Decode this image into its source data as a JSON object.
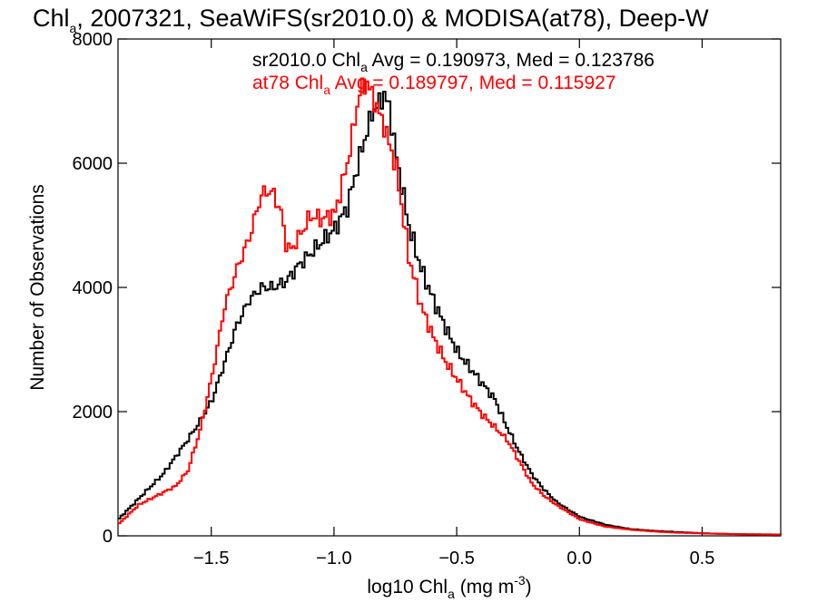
{
  "chart_data": {
    "type": "line",
    "title": {
      "pre": "Chl",
      "sub": "a",
      "post": ", 2007321, SeaWiFS(sr2010.0) & MODISA(at78), Deep-W"
    },
    "xlabel": {
      "pre": "log10 Chl",
      "sub": "a",
      "mid": " (mg m",
      "sup": "-3",
      "post": ")"
    },
    "ylabel": "Number of Observations",
    "xlim": [
      -1.88,
      0.82
    ],
    "ylim": [
      0,
      8000
    ],
    "xticks": [
      -1.5,
      -1.0,
      -0.5,
      0.0,
      0.5
    ],
    "xtick_labels": [
      "−1.5",
      "−1.0",
      "−0.5",
      "0.0",
      "0.5"
    ],
    "yticks": [
      0,
      2000,
      4000,
      6000,
      8000
    ],
    "ytick_labels": [
      "0",
      "2000",
      "4000",
      "6000",
      "8000"
    ],
    "grid": false,
    "legend_placement": "top-center",
    "series": [
      {
        "legend": {
          "pre": "sr2010.0 Chl",
          "sub": "a",
          "post": " Avg = 0.190973, Med = 0.123786"
        },
        "color": "#000000",
        "x": [
          -1.88,
          -1.8,
          -1.7,
          -1.6,
          -1.55,
          -1.5,
          -1.45,
          -1.4,
          -1.35,
          -1.3,
          -1.25,
          -1.2,
          -1.15,
          -1.1,
          -1.05,
          -1.0,
          -0.95,
          -0.9,
          -0.85,
          -0.8,
          -0.78,
          -0.75,
          -0.7,
          -0.65,
          -0.6,
          -0.55,
          -0.5,
          -0.45,
          -0.4,
          -0.35,
          -0.3,
          -0.25,
          -0.2,
          -0.15,
          -0.1,
          -0.05,
          0.0,
          0.1,
          0.2,
          0.3,
          0.4,
          0.5,
          0.6,
          0.7,
          0.82
        ],
        "values": [
          280,
          600,
          1000,
          1550,
          1850,
          2200,
          2800,
          3400,
          3800,
          4000,
          4000,
          4100,
          4350,
          4550,
          4750,
          4950,
          5300,
          6100,
          6800,
          7100,
          6900,
          6100,
          5000,
          4300,
          3800,
          3350,
          2950,
          2700,
          2450,
          2200,
          1750,
          1350,
          1000,
          750,
          550,
          420,
          300,
          180,
          110,
          80,
          60,
          40,
          30,
          25,
          20
        ]
      },
      {
        "legend": {
          "pre": "at78 Chl",
          "sub": "a",
          "post": " Avg = 0.189797, Med = 0.115927"
        },
        "color": "#ff0000",
        "x": [
          -1.88,
          -1.8,
          -1.7,
          -1.65,
          -1.6,
          -1.55,
          -1.5,
          -1.45,
          -1.4,
          -1.35,
          -1.3,
          -1.27,
          -1.25,
          -1.22,
          -1.2,
          -1.18,
          -1.15,
          -1.1,
          -1.05,
          -1.0,
          -0.95,
          -0.9,
          -0.87,
          -0.85,
          -0.8,
          -0.75,
          -0.7,
          -0.65,
          -0.6,
          -0.55,
          -0.5,
          -0.45,
          -0.4,
          -0.35,
          -0.3,
          -0.25,
          -0.2,
          -0.15,
          -0.1,
          -0.05,
          0.0,
          0.1,
          0.2,
          0.3,
          0.4,
          0.5,
          0.6,
          0.7,
          0.82
        ],
        "values": [
          200,
          500,
          700,
          800,
          1050,
          1700,
          2600,
          3700,
          4300,
          4800,
          5500,
          5550,
          5500,
          5200,
          4700,
          4600,
          4800,
          5150,
          5100,
          5200,
          6000,
          7150,
          7300,
          7100,
          6600,
          5900,
          4500,
          3700,
          3200,
          2800,
          2500,
          2200,
          1950,
          1750,
          1550,
          1200,
          850,
          650,
          500,
          380,
          260,
          150,
          100,
          70,
          50,
          40,
          30,
          22,
          18
        ]
      }
    ]
  }
}
